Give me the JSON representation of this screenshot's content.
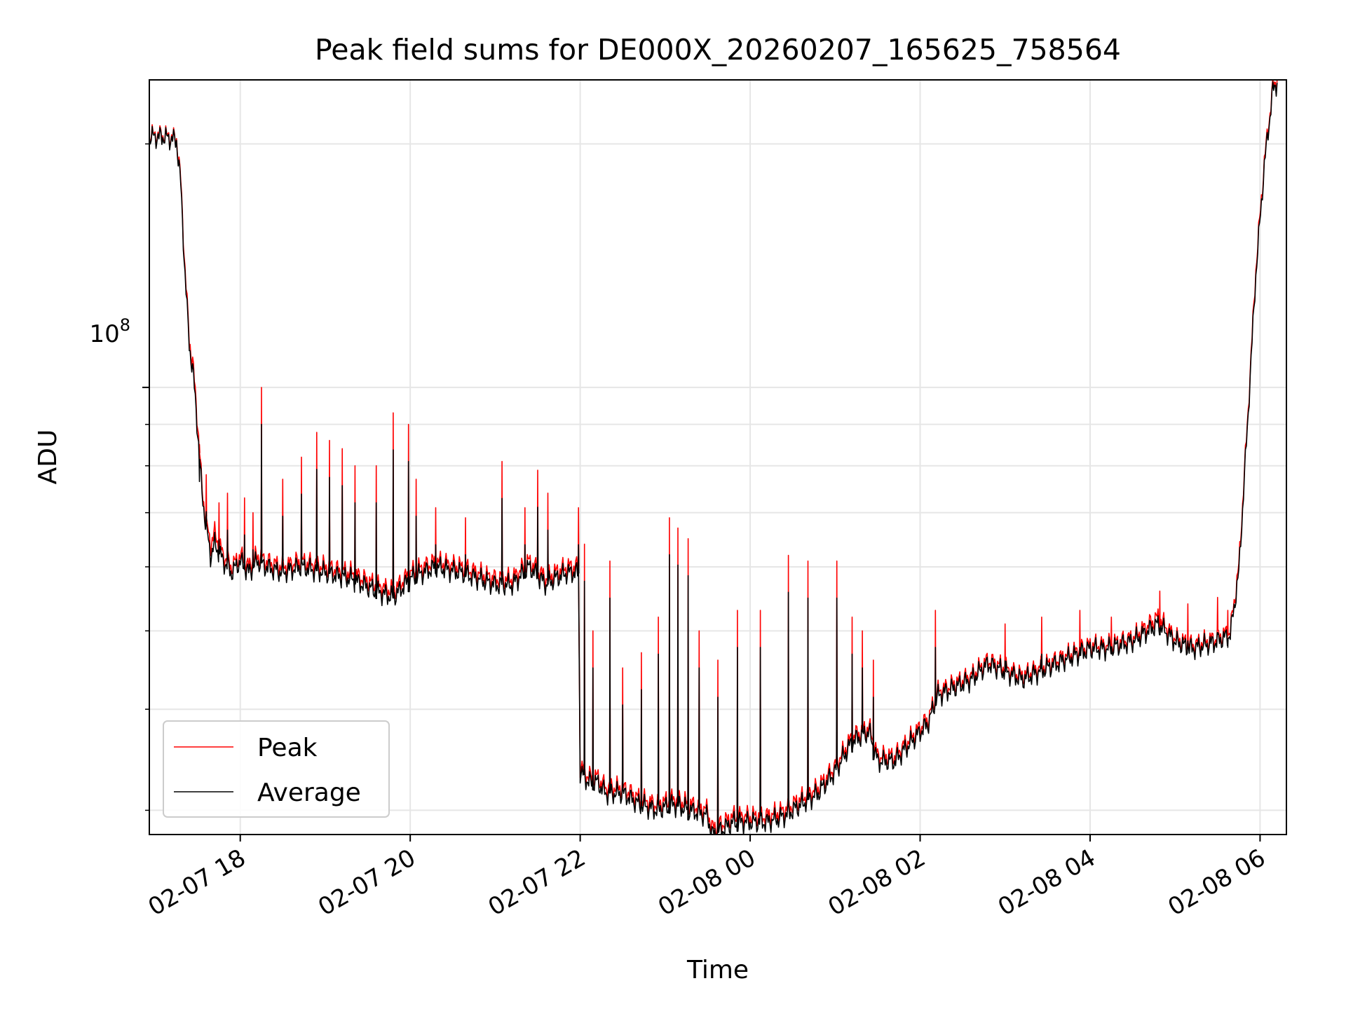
{
  "chart_data": {
    "type": "line",
    "title": "Peak field sums for DE000X_20260207_165625_758564",
    "xlabel": "Time",
    "ylabel": "ADU",
    "yscale": "log",
    "x_tick_labels": [
      "02-07 18",
      "02-07 20",
      "02-07 22",
      "02-08 00",
      "02-08 02",
      "02-08 04",
      "02-08 06"
    ],
    "x_tick_hours": [
      18,
      20,
      22,
      24,
      26,
      28,
      30
    ],
    "xlim_hours": [
      16.93,
      30.31
    ],
    "y_tick_label_base": "10",
    "y_tick_label_exponent": "8",
    "y_major_tick": 100000000,
    "y_minor_ticks": [
      30000000,
      40000000,
      50000000,
      60000000,
      70000000,
      80000000,
      90000000,
      200000000
    ],
    "ylim": [
      28000000,
      240000000
    ],
    "grid": true,
    "legend_position": "lower left",
    "series": [
      {
        "name": "Peak",
        "color": "#ff0000",
        "points": [
          [
            16.93,
            205000000
          ],
          [
            17.1,
            205000000
          ],
          [
            17.25,
            203000000
          ],
          [
            17.3,
            180000000
          ],
          [
            17.35,
            140000000
          ],
          [
            17.4,
            115000000
          ],
          [
            17.45,
            105000000
          ],
          [
            17.5,
            90000000
          ],
          [
            17.55,
            75000000
          ],
          [
            17.6,
            68000000
          ],
          [
            17.65,
            64000000
          ],
          [
            17.7,
            66000000
          ],
          [
            17.8,
            62000000
          ],
          [
            17.9,
            60000000
          ],
          [
            18.0,
            62000000
          ],
          [
            18.1,
            60000000
          ],
          [
            18.2,
            62000000
          ],
          [
            18.3,
            61000000
          ],
          [
            18.5,
            60000000
          ],
          [
            18.7,
            61000000
          ],
          [
            19.0,
            60000000
          ],
          [
            19.3,
            59000000
          ],
          [
            19.6,
            57000000
          ],
          [
            19.8,
            56000000
          ],
          [
            20.0,
            59000000
          ],
          [
            20.3,
            61000000
          ],
          [
            20.6,
            60000000
          ],
          [
            20.8,
            59000000
          ],
          [
            21.0,
            58000000
          ],
          [
            21.2,
            58000000
          ],
          [
            21.4,
            61000000
          ],
          [
            21.6,
            58000000
          ],
          [
            21.7,
            59000000
          ],
          [
            21.85,
            60000000
          ],
          [
            21.98,
            60000000
          ],
          [
            22.0,
            34000000
          ],
          [
            22.1,
            33000000
          ],
          [
            22.2,
            33000000
          ],
          [
            22.3,
            32000000
          ],
          [
            22.5,
            32000000
          ],
          [
            22.7,
            31000000
          ],
          [
            22.9,
            30500000
          ],
          [
            23.1,
            31000000
          ],
          [
            23.3,
            30500000
          ],
          [
            23.5,
            30000000
          ],
          [
            23.55,
            28500000
          ],
          [
            23.7,
            29000000
          ],
          [
            23.8,
            29500000
          ],
          [
            24.0,
            29500000
          ],
          [
            24.2,
            29500000
          ],
          [
            24.4,
            30000000
          ],
          [
            24.6,
            31000000
          ],
          [
            24.8,
            32000000
          ],
          [
            25.0,
            34000000
          ],
          [
            25.2,
            37000000
          ],
          [
            25.4,
            38000000
          ],
          [
            25.5,
            35000000
          ],
          [
            25.6,
            35000000
          ],
          [
            25.7,
            35000000
          ],
          [
            25.8,
            36000000
          ],
          [
            26.0,
            38000000
          ],
          [
            26.1,
            39000000
          ],
          [
            26.2,
            42000000
          ],
          [
            26.4,
            43000000
          ],
          [
            26.6,
            44000000
          ],
          [
            26.8,
            46000000
          ],
          [
            27.0,
            45000000
          ],
          [
            27.2,
            44000000
          ],
          [
            27.4,
            45000000
          ],
          [
            27.6,
            46000000
          ],
          [
            27.8,
            47000000
          ],
          [
            28.0,
            48000000
          ],
          [
            28.2,
            48000000
          ],
          [
            28.5,
            49000000
          ],
          [
            28.8,
            52000000
          ],
          [
            29.0,
            49000000
          ],
          [
            29.2,
            48000000
          ],
          [
            29.5,
            49000000
          ],
          [
            29.65,
            50000000
          ],
          [
            29.75,
            60000000
          ],
          [
            29.85,
            90000000
          ],
          [
            29.95,
            140000000
          ],
          [
            30.05,
            190000000
          ],
          [
            30.15,
            235000000
          ],
          [
            30.2,
            240000000
          ]
        ],
        "spikes": [
          [
            17.52,
            85000000
          ],
          [
            17.6,
            78000000
          ],
          [
            17.75,
            72000000
          ],
          [
            17.85,
            74000000
          ],
          [
            18.05,
            73000000
          ],
          [
            18.15,
            70000000
          ],
          [
            18.25,
            100000000
          ],
          [
            18.5,
            77000000
          ],
          [
            18.72,
            82000000
          ],
          [
            18.9,
            88000000
          ],
          [
            19.05,
            86000000
          ],
          [
            19.2,
            84000000
          ],
          [
            19.35,
            80000000
          ],
          [
            19.6,
            80000000
          ],
          [
            19.8,
            93000000
          ],
          [
            19.98,
            90000000
          ],
          [
            20.07,
            77000000
          ],
          [
            20.3,
            71000000
          ],
          [
            20.65,
            69000000
          ],
          [
            21.08,
            81000000
          ],
          [
            21.35,
            71000000
          ],
          [
            21.5,
            79000000
          ],
          [
            21.62,
            74000000
          ],
          [
            21.98,
            71000000
          ],
          [
            22.05,
            64000000
          ],
          [
            22.15,
            50000000
          ],
          [
            22.35,
            61000000
          ],
          [
            22.5,
            45000000
          ],
          [
            22.72,
            47000000
          ],
          [
            22.92,
            52000000
          ],
          [
            23.05,
            69000000
          ],
          [
            23.15,
            67000000
          ],
          [
            23.27,
            65000000
          ],
          [
            23.4,
            50000000
          ],
          [
            23.62,
            46000000
          ],
          [
            23.85,
            53000000
          ],
          [
            24.12,
            53000000
          ],
          [
            24.45,
            62000000
          ],
          [
            24.68,
            61000000
          ],
          [
            25.02,
            61000000
          ],
          [
            25.2,
            52000000
          ],
          [
            25.32,
            50000000
          ],
          [
            25.45,
            46000000
          ],
          [
            26.18,
            53000000
          ],
          [
            27.0,
            51000000
          ],
          [
            27.43,
            52000000
          ],
          [
            27.88,
            53000000
          ],
          [
            28.25,
            52000000
          ],
          [
            28.82,
            56000000
          ],
          [
            29.15,
            54000000
          ],
          [
            29.5,
            55000000
          ],
          [
            29.62,
            53000000
          ]
        ]
      },
      {
        "name": "Average",
        "color": "#000000",
        "points": [
          [
            16.93,
            204000000
          ],
          [
            17.1,
            204000000
          ],
          [
            17.25,
            202000000
          ],
          [
            17.3,
            178000000
          ],
          [
            17.35,
            138000000
          ],
          [
            17.4,
            113000000
          ],
          [
            17.45,
            103000000
          ],
          [
            17.5,
            88000000
          ],
          [
            17.55,
            74000000
          ],
          [
            17.6,
            67000000
          ],
          [
            17.65,
            62000000
          ],
          [
            17.7,
            64000000
          ],
          [
            17.8,
            61000000
          ],
          [
            17.9,
            59000000
          ],
          [
            18.0,
            61000000
          ],
          [
            18.1,
            59000000
          ],
          [
            18.2,
            61000000
          ],
          [
            18.3,
            60000000
          ],
          [
            18.5,
            59000000
          ],
          [
            18.7,
            60000000
          ],
          [
            19.0,
            59000000
          ],
          [
            19.3,
            58000000
          ],
          [
            19.6,
            56000000
          ],
          [
            19.8,
            55000000
          ],
          [
            20.0,
            58000000
          ],
          [
            20.3,
            60000000
          ],
          [
            20.6,
            59000000
          ],
          [
            20.8,
            58000000
          ],
          [
            21.0,
            57000000
          ],
          [
            21.2,
            57000000
          ],
          [
            21.4,
            60000000
          ],
          [
            21.6,
            57000000
          ],
          [
            21.7,
            58000000
          ],
          [
            21.85,
            59000000
          ],
          [
            21.98,
            59000000
          ],
          [
            22.0,
            33500000
          ],
          [
            22.1,
            32500000
          ],
          [
            22.2,
            32500000
          ],
          [
            22.3,
            31500000
          ],
          [
            22.5,
            31500000
          ],
          [
            22.7,
            30500000
          ],
          [
            22.9,
            30000000
          ],
          [
            23.1,
            30500000
          ],
          [
            23.3,
            30000000
          ],
          [
            23.5,
            29500000
          ],
          [
            23.55,
            28000000
          ],
          [
            23.7,
            28500000
          ],
          [
            23.8,
            29000000
          ],
          [
            24.0,
            29000000
          ],
          [
            24.2,
            29000000
          ],
          [
            24.4,
            29500000
          ],
          [
            24.6,
            30500000
          ],
          [
            24.8,
            31500000
          ],
          [
            25.0,
            33500000
          ],
          [
            25.2,
            36500000
          ],
          [
            25.4,
            37500000
          ],
          [
            25.5,
            34500000
          ],
          [
            25.6,
            34500000
          ],
          [
            25.7,
            34500000
          ],
          [
            25.8,
            35500000
          ],
          [
            26.0,
            37500000
          ],
          [
            26.1,
            38500000
          ],
          [
            26.2,
            41500000
          ],
          [
            26.4,
            42500000
          ],
          [
            26.6,
            43500000
          ],
          [
            26.8,
            45500000
          ],
          [
            27.0,
            44500000
          ],
          [
            27.2,
            43500000
          ],
          [
            27.4,
            44500000
          ],
          [
            27.6,
            45500000
          ],
          [
            27.8,
            46500000
          ],
          [
            28.0,
            47500000
          ],
          [
            28.2,
            47500000
          ],
          [
            28.5,
            48500000
          ],
          [
            28.8,
            51000000
          ],
          [
            29.0,
            48500000
          ],
          [
            29.2,
            47500000
          ],
          [
            29.5,
            48500000
          ],
          [
            29.65,
            49500000
          ],
          [
            29.75,
            59000000
          ],
          [
            29.85,
            89000000
          ],
          [
            29.95,
            138000000
          ],
          [
            30.05,
            188000000
          ],
          [
            30.15,
            233000000
          ],
          [
            30.2,
            238000000
          ]
        ]
      }
    ]
  }
}
